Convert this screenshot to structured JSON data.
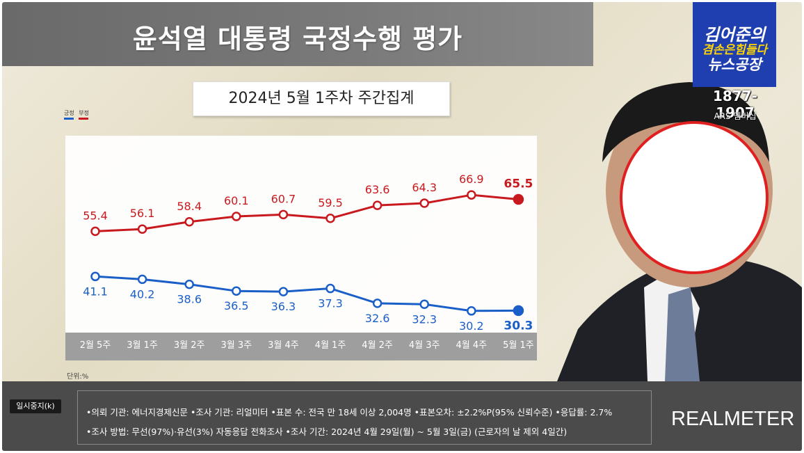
{
  "header": {
    "title": "윤석열 대통령 국정수행 평가",
    "subtitle": "2024년 5월 1주차 주간집계"
  },
  "legend": [
    {
      "label": "긍정",
      "color": "#1a5fc8"
    },
    {
      "label": "부정",
      "color": "#c8191e"
    }
  ],
  "unit_label": "단위:%",
  "chart_data": {
    "type": "line",
    "title": "윤석열 대통령 국정수행 평가",
    "subtitle": "2024년 5월 1주차 주간집계",
    "categories": [
      "2월 5주",
      "3월 1주",
      "3월 2주",
      "3월 3주",
      "3월 4주",
      "4월 1주",
      "4월 2주",
      "4월 3주",
      "4월 4주",
      "5월 1주"
    ],
    "series": [
      {
        "name": "부정",
        "color": "#c8191e",
        "values": [
          55.4,
          56.1,
          58.4,
          60.1,
          60.7,
          59.5,
          63.6,
          64.3,
          66.9,
          65.5
        ]
      },
      {
        "name": "긍정",
        "color": "#1a5fc8",
        "values": [
          41.1,
          40.2,
          38.6,
          36.5,
          36.3,
          37.3,
          32.6,
          32.3,
          30.2,
          30.3
        ]
      }
    ],
    "unit": "단위:%",
    "grid": false,
    "legend_position": "top-left"
  },
  "branding": {
    "program_line1": "김어준의",
    "program_line2": "겸손은힘들다",
    "program_line3": "뉴스공장",
    "phone": "1877-1907",
    "ars": "ARS 멤버십",
    "source_logo": "REALMETER"
  },
  "footer": {
    "pause_button": "일시중지(k)",
    "note_line1": "•의뢰 기관: 에너지경제신문 •조사 기관: 리얼미터 •표본 수: 전국 만 18세 이상 2,004명 •표본오차: ±2.2%P(95% 신뢰수준) •응답률: 2.7%",
    "note_line2": "•조사 방법: 무선(97%)·유선(3%) 자동응답 전화조사 •조사 기간: 2024년 4월 29일(월) ~ 5월 3일(금) (근로자의 날 제외 4일간)"
  }
}
